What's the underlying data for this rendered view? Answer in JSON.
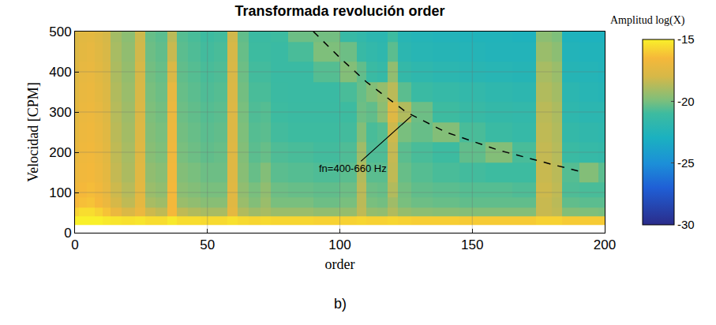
{
  "chart_data": {
    "type": "heatmap",
    "title": "Transformada revolución order",
    "caption": "b)",
    "x_label": "order",
    "y_label": "Velocidad [CPM]",
    "xlim": [
      0,
      200
    ],
    "xticks": [
      0,
      50,
      100,
      150,
      200
    ],
    "ylim": [
      0,
      500
    ],
    "yticks": [
      0,
      100,
      200,
      300,
      400,
      500
    ],
    "grid": true,
    "x": [
      0,
      3,
      6,
      9,
      12,
      15,
      20,
      25,
      28,
      33,
      37,
      40,
      45,
      50,
      55,
      60,
      63,
      68,
      72,
      76,
      85,
      95,
      105,
      108,
      112,
      116,
      120,
      124,
      130,
      140,
      150,
      160,
      170,
      178,
      182,
      186,
      195,
      200
    ],
    "y": [
      30,
      50,
      75,
      100,
      150,
      200,
      250,
      300,
      350,
      400,
      450,
      500
    ],
    "z": [
      [
        -15,
        -15,
        -15,
        -15,
        -15.2,
        -15.3,
        -15.4,
        -15.3,
        -15.5,
        -15.5,
        -15.2,
        -15.5,
        -15.5,
        -15.6,
        -15.6,
        -15.4,
        -15.6,
        -15.7,
        -15.6,
        -15.7,
        -15.7,
        -15.8,
        -15.8,
        -15.7,
        -15.8,
        -15.8,
        -15.7,
        -15.8,
        -15.9,
        -15.9,
        -16,
        -16,
        -16,
        -15.8,
        -15.8,
        -16,
        -16,
        -16
      ],
      [
        -15.8,
        -15.5,
        -15.5,
        -15.8,
        -16.2,
        -17,
        -17.8,
        -17,
        -18.2,
        -18.5,
        -16.5,
        -18.5,
        -18.8,
        -19,
        -19,
        -17.3,
        -18.8,
        -19.2,
        -19,
        -19.3,
        -19.3,
        -19.5,
        -19.4,
        -18.5,
        -19.4,
        -19.5,
        -18.8,
        -19.4,
        -19.6,
        -19.7,
        -19.8,
        -19.8,
        -19.8,
        -18.3,
        -18.5,
        -19.8,
        -19.9,
        -20
      ],
      [
        -16.5,
        -16.3,
        -16.2,
        -16.5,
        -17,
        -18,
        -18.5,
        -17.3,
        -19,
        -19.2,
        -16.6,
        -19.3,
        -19.5,
        -19.7,
        -19.7,
        -17.5,
        -19.3,
        -19.8,
        -19.3,
        -20,
        -20,
        -20.2,
        -20,
        -18.6,
        -20,
        -20.1,
        -19.2,
        -20,
        -20.2,
        -20.3,
        -20.4,
        -20.4,
        -20.4,
        -18.3,
        -18.6,
        -20.4,
        -20.5,
        -20.5
      ],
      [
        -16.8,
        -16.5,
        -16.4,
        -16.7,
        -17.2,
        -18.2,
        -18.7,
        -17.4,
        -19.3,
        -19.5,
        -16.6,
        -19.6,
        -19.8,
        -20,
        -20,
        -17.5,
        -19.5,
        -20,
        -19.5,
        -20.2,
        -20.3,
        -20.4,
        -20.2,
        -18.6,
        -20.2,
        -20.3,
        -18.8,
        -20.1,
        -20.4,
        -20.5,
        -20.6,
        -20.6,
        -20.7,
        -18.2,
        -18.5,
        -20.7,
        -20.8,
        -20.8
      ],
      [
        -17,
        -16.7,
        -16.6,
        -16.9,
        -17.3,
        -18.4,
        -18.9,
        -17.5,
        -19.5,
        -19.7,
        -16.7,
        -19.8,
        -20,
        -20.2,
        -20.2,
        -17.6,
        -19.7,
        -20.3,
        -19.8,
        -20.5,
        -20.6,
        -20.7,
        -20.5,
        -18.8,
        -20.5,
        -20.5,
        -18.5,
        -20.3,
        -20.6,
        -20.8,
        -20.9,
        -21,
        -21,
        -18.3,
        -18.6,
        -20.6,
        -19.8,
        -20.5
      ],
      [
        -17.2,
        -16.8,
        -16.7,
        -17,
        -17.4,
        -18.5,
        -19,
        -17.6,
        -19.7,
        -19.9,
        -16.8,
        -20,
        -20.2,
        -20.4,
        -20.3,
        -17.6,
        -19.8,
        -20.5,
        -20.3,
        -20.7,
        -20.8,
        -20.9,
        -20.7,
        -19.2,
        -20.7,
        -20.7,
        -18.4,
        -20.5,
        -20.8,
        -21,
        -20.4,
        -19.8,
        -20.8,
        -18.4,
        -18.7,
        -21.2,
        -21.4,
        -21.5
      ],
      [
        -17.3,
        -16.9,
        -16.8,
        -17.1,
        -17.5,
        -18.6,
        -19.1,
        -17.7,
        -19.8,
        -20,
        -16.9,
        -20.1,
        -20.3,
        -20.5,
        -20.4,
        -17.7,
        -19.9,
        -20.6,
        -20.5,
        -20.9,
        -21,
        -21,
        -20.9,
        -19.8,
        -20.8,
        -20.6,
        -18.2,
        -20,
        -20.3,
        -19.8,
        -20.8,
        -21.2,
        -21.4,
        -18.5,
        -18.8,
        -21.5,
        -21.7,
        -21.8
      ],
      [
        -17.4,
        -17,
        -16.9,
        -17.2,
        -17.6,
        -18.7,
        -19.2,
        -17.8,
        -19.9,
        -20.1,
        -17,
        -20.2,
        -20.4,
        -20.6,
        -20.5,
        -17.7,
        -20,
        -20.7,
        -20.6,
        -21,
        -21.1,
        -21.1,
        -21,
        -20.2,
        -20.4,
        -19.6,
        -17.6,
        -18.8,
        -20.2,
        -21,
        -21.3,
        -21.5,
        -21.6,
        -18.6,
        -18.9,
        -21.8,
        -22,
        -22
      ],
      [
        -17.5,
        -17.1,
        -17,
        -17.3,
        -17.7,
        -18.8,
        -19.3,
        -17.9,
        -20,
        -20.2,
        -17.2,
        -20.3,
        -20.5,
        -20.7,
        -20.6,
        -17.8,
        -20.1,
        -20.8,
        -20.8,
        -21.1,
        -21.2,
        -21.2,
        -20.8,
        -20.3,
        -19.8,
        -19.4,
        -18.6,
        -20.5,
        -21.2,
        -21.4,
        -21.6,
        -21.8,
        -21.9,
        -18.8,
        -19.1,
        -22,
        -22.2,
        -22.3
      ],
      [
        -17.6,
        -17.2,
        -17.1,
        -17.4,
        -17.8,
        -18.9,
        -19.4,
        -18,
        -20.1,
        -20.3,
        -17.8,
        -20.4,
        -20.6,
        -20.8,
        -20.7,
        -17.9,
        -20.2,
        -20.9,
        -20.9,
        -21.2,
        -21.2,
        -20.6,
        -19.8,
        -20.4,
        -21.2,
        -21.4,
        -19.5,
        -21.5,
        -21.8,
        -22,
        -22.1,
        -22.2,
        -22.3,
        -19,
        -19.3,
        -22.3,
        -22.4,
        -22.5
      ],
      [
        -17.7,
        -17.3,
        -17.2,
        -17.5,
        -17.9,
        -19,
        -19.5,
        -18.1,
        -20.2,
        -20.4,
        -18.3,
        -20.5,
        -20.7,
        -20.9,
        -20.8,
        -18,
        -20.3,
        -21,
        -21,
        -21.2,
        -20.8,
        -19.9,
        -20.2,
        -21.3,
        -21.6,
        -21.8,
        -20.5,
        -22,
        -22.2,
        -22.3,
        -22.4,
        -22.5,
        -22.5,
        -19.3,
        -19.6,
        -22.5,
        -22.6,
        -22.6
      ],
      [
        -17.8,
        -17.4,
        -17.3,
        -17.6,
        -18,
        -19.1,
        -19.6,
        -18.2,
        -20.3,
        -20.5,
        -18.6,
        -20.6,
        -20.8,
        -21,
        -20.9,
        -18.1,
        -20.4,
        -21.1,
        -21.1,
        -21,
        -20.2,
        -20.1,
        -21.3,
        -21.6,
        -21.9,
        -22,
        -21,
        -22.2,
        -22.4,
        -22.5,
        -22.6,
        -22.6,
        -22.7,
        -19.6,
        -19.9,
        -22.7,
        -22.8,
        -22.8
      ]
    ],
    "colorbar": {
      "title": "Amplitud log(X)",
      "zlim": [
        -30,
        -15
      ],
      "ticks": [
        -15,
        -20,
        -25,
        -30
      ]
    },
    "lines": [
      {
        "x": [
          90,
          100,
          110,
          125,
          140,
          160,
          180,
          192
        ],
        "y": [
          500,
          435,
          375,
          300,
          250,
          205,
          170,
          150
        ],
        "line_style": "dashed",
        "color": "#000000"
      }
    ],
    "annotations": [
      {
        "text": "fn=400-660 Hz",
        "x": 127,
        "y": 290,
        "text_x": 105,
        "text_y": 160
      }
    ]
  }
}
